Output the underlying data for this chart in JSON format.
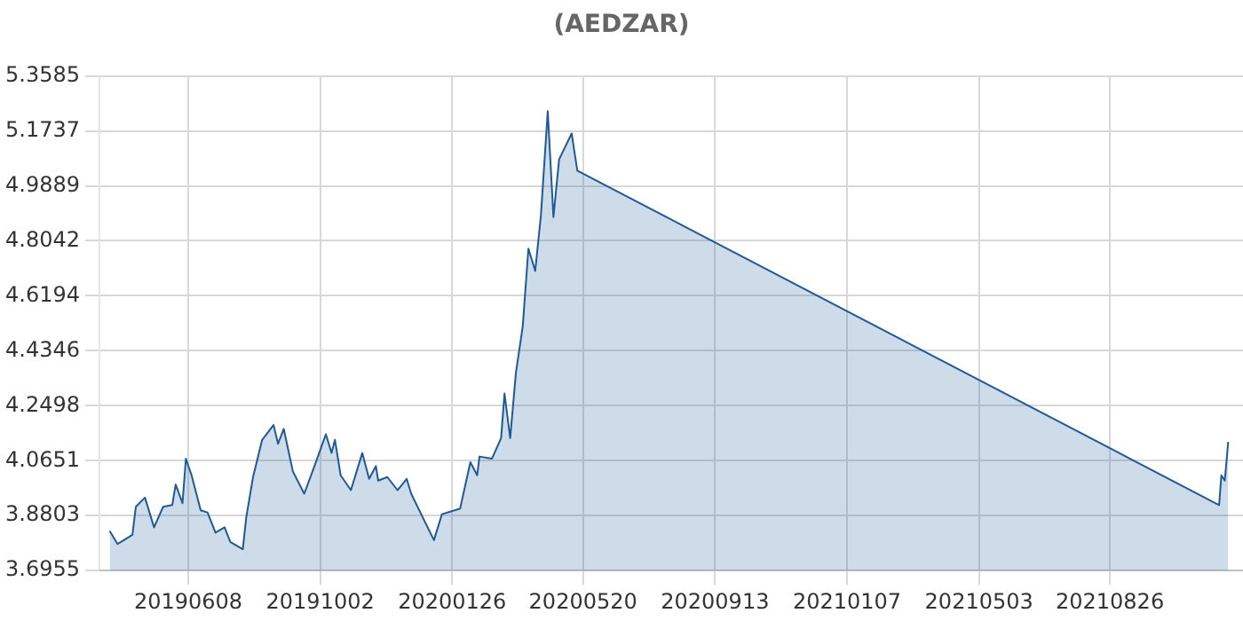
{
  "chart_data": {
    "type": "area",
    "title": "(AEDZAR)",
    "x": [
      "2019-03-31",
      "2019-04-07",
      "2019-04-20",
      "2019-04-23",
      "2019-05-01",
      "2019-05-09",
      "2019-05-17",
      "2019-05-25",
      "2019-05-28",
      "2019-06-03",
      "2019-06-06",
      "2019-06-11",
      "2019-06-19",
      "2019-06-25",
      "2019-07-02",
      "2019-07-10",
      "2019-07-15",
      "2019-07-26",
      "2019-07-29",
      "2019-08-04",
      "2019-08-12",
      "2019-08-22",
      "2019-08-26",
      "2019-08-31",
      "2019-09-08",
      "2019-09-18",
      "2019-09-27",
      "2019-10-07",
      "2019-10-12",
      "2019-10-15",
      "2019-10-20",
      "2019-10-29",
      "2019-11-08",
      "2019-11-14",
      "2019-11-20",
      "2019-11-22",
      "2019-11-30",
      "2019-12-09",
      "2019-12-17",
      "2019-12-21",
      "2019-12-29",
      "2020-01-10",
      "2020-01-17",
      "2020-02-02",
      "2020-02-11",
      "2020-02-17",
      "2020-02-19",
      "2020-03-01",
      "2020-03-09",
      "2020-03-12",
      "2020-03-17",
      "2020-03-22",
      "2020-03-28",
      "2020-04-02",
      "2020-04-08",
      "2020-04-13",
      "2020-04-19",
      "2020-04-24",
      "2020-04-29",
      "2020-05-10",
      "2020-05-15",
      "2021-11-30",
      "2021-12-02",
      "2021-12-05",
      "2021-12-08"
    ],
    "series": [
      {
        "color": "#1f5a96",
        "values": [
          3.829,
          3.785,
          3.816,
          3.91,
          3.941,
          3.841,
          3.91,
          3.916,
          3.985,
          3.922,
          4.072,
          4.016,
          3.898,
          3.891,
          3.823,
          3.841,
          3.792,
          3.767,
          3.873,
          4.01,
          4.135,
          4.185,
          4.122,
          4.172,
          4.029,
          3.954,
          4.047,
          4.154,
          4.091,
          4.135,
          4.016,
          3.966,
          4.091,
          4.004,
          4.047,
          3.998,
          4.01,
          3.966,
          4.004,
          3.954,
          3.891,
          3.798,
          3.885,
          3.904,
          4.06,
          4.016,
          4.079,
          4.072,
          4.141,
          4.291,
          4.141,
          4.36,
          4.516,
          4.778,
          4.703,
          4.89,
          5.24,
          4.884,
          5.078,
          5.165,
          5.04,
          3.916,
          4.016,
          3.998,
          4.128
        ]
      }
    ],
    "xlim": [
      "2019-03-22",
      "2021-12-21"
    ],
    "xticks": [
      {
        "value": "2019-06-08",
        "label": "20190608"
      },
      {
        "value": "2019-10-02",
        "label": "20191002"
      },
      {
        "value": "2020-01-26",
        "label": "20200126"
      },
      {
        "value": "2020-05-20",
        "label": "20200520"
      },
      {
        "value": "2020-09-13",
        "label": "20200913"
      },
      {
        "value": "2021-01-07",
        "label": "20210107"
      },
      {
        "value": "2021-05-03",
        "label": "20210503"
      },
      {
        "value": "2021-08-26",
        "label": "20210826"
      }
    ],
    "ylim": [
      3.6955,
      5.3585
    ],
    "yticks": [
      3.6955,
      3.8803,
      4.0651,
      4.2498,
      4.4346,
      4.6194,
      4.8042,
      4.9889,
      5.1737,
      5.3585
    ],
    "grid": true
  }
}
